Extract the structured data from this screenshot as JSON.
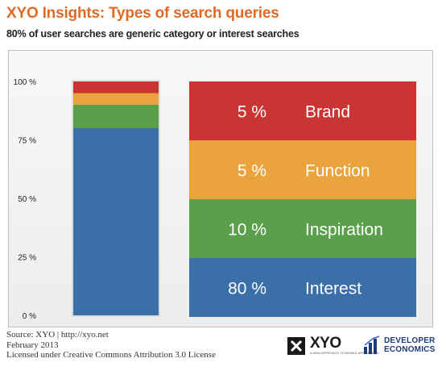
{
  "header": {
    "title": "XYO Insights: Types of search queries",
    "subtitle": "80% of user searches are generic category or interest searches"
  },
  "chart_data": {
    "type": "bar",
    "stacked": true,
    "categories": [
      ""
    ],
    "ylim": [
      0,
      100
    ],
    "yticks": [
      "100 %",
      "75 %",
      "50 %",
      "25 %",
      "0 %"
    ],
    "ytick_values": [
      100,
      75,
      50,
      25,
      0
    ],
    "series": [
      {
        "name": "Interest",
        "values": [
          80
        ],
        "percent_label": "80 %",
        "color": "#3a6fa8"
      },
      {
        "name": "Inspiration",
        "values": [
          10
        ],
        "percent_label": "10 %",
        "color": "#5a9f4c"
      },
      {
        "name": "Function",
        "values": [
          5
        ],
        "percent_label": "5 %",
        "color": "#eaa33d"
      },
      {
        "name": "Brand",
        "values": [
          5
        ],
        "percent_label": "5 %",
        "color": "#c93532"
      }
    ],
    "legend_placement": "right",
    "grid": false
  },
  "footer": {
    "lines": [
      "Source: XYO | http://xyo.net",
      "February 2013",
      "Licensed under Creative Commons Attribution 3.0 License"
    ]
  },
  "logos": {
    "xyo_word": "XYO",
    "xyo_tagline": "A NEW APPROACH TO MOBILE APP SEARCH",
    "dev_line1": "DEVELOPER",
    "dev_line2": "ECONOMICS"
  },
  "colors": {
    "title": "#e06a24",
    "dev_logo": "#1f3a78"
  }
}
